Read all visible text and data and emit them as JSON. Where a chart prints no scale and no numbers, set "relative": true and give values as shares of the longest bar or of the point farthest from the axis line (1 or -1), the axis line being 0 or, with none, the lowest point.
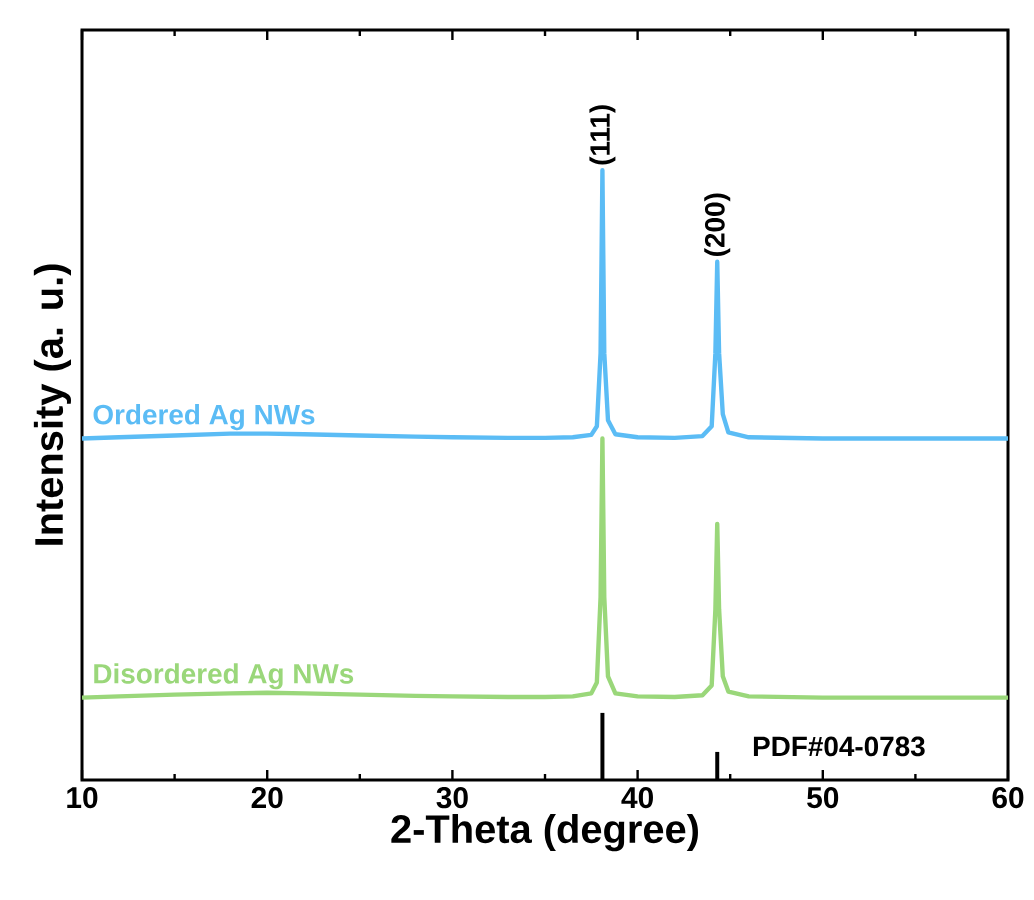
{
  "chart_data": {
    "type": "line",
    "xlabel": "2-Theta (degree)",
    "ylabel": "Intensity (a. u.)",
    "relative": true,
    "xlim": [
      10,
      60
    ],
    "xticks": [
      10,
      20,
      30,
      40,
      50,
      60
    ],
    "annotations": [
      {
        "text": "(111)",
        "x": 38.1,
        "y": 1.0
      },
      {
        "text": "(200)",
        "x": 44.3,
        "y": 0.85
      }
    ],
    "series": [
      {
        "name": "Ordered Ag NWs",
        "color": "#5bbcf5",
        "x": [
          10,
          12,
          15,
          18,
          20,
          22,
          25,
          28,
          30,
          33,
          35,
          36.5,
          37.5,
          37.8,
          38.0,
          38.1,
          38.2,
          38.4,
          38.8,
          40,
          42,
          43.5,
          44.0,
          44.2,
          44.3,
          44.4,
          44.6,
          44.9,
          46,
          50,
          55,
          60
        ],
        "values": [
          0.56,
          0.562,
          0.565,
          0.568,
          0.568,
          0.567,
          0.565,
          0.563,
          0.562,
          0.561,
          0.561,
          0.562,
          0.566,
          0.58,
          0.7,
          1.0,
          0.7,
          0.59,
          0.567,
          0.562,
          0.561,
          0.564,
          0.58,
          0.7,
          0.85,
          0.7,
          0.6,
          0.57,
          0.562,
          0.56,
          0.56,
          0.56
        ]
      },
      {
        "name": "Disordered Ag NWs",
        "color": "#9ad77a",
        "x": [
          10,
          12,
          15,
          18,
          20,
          22,
          25,
          28,
          30,
          33,
          35,
          36.5,
          37.5,
          37.8,
          38.0,
          38.1,
          38.2,
          38.4,
          38.8,
          40,
          42,
          43.5,
          44.0,
          44.2,
          44.3,
          44.4,
          44.6,
          44.9,
          46,
          50,
          55,
          60
        ],
        "values": [
          0.135,
          0.137,
          0.14,
          0.142,
          0.143,
          0.142,
          0.14,
          0.138,
          0.137,
          0.136,
          0.136,
          0.137,
          0.142,
          0.16,
          0.3,
          0.56,
          0.3,
          0.17,
          0.142,
          0.137,
          0.136,
          0.139,
          0.155,
          0.28,
          0.42,
          0.28,
          0.17,
          0.145,
          0.137,
          0.135,
          0.135,
          0.135
        ]
      },
      {
        "name": "PDF#04-0783",
        "type": "bar",
        "color": "#000000",
        "x": [
          38.1,
          44.3
        ],
        "values": [
          0.11,
          0.046
        ]
      }
    ]
  }
}
